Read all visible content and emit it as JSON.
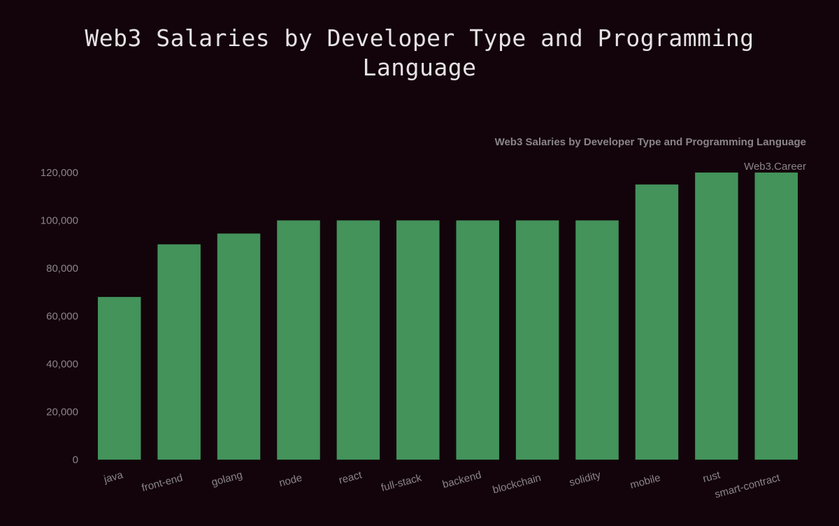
{
  "page": {
    "title_line1": "Web3 Salaries by Developer Type and Programming",
    "title_line2": "Language"
  },
  "colors": {
    "background": "#13040b",
    "bar": "#43935b",
    "text": "#8a8588",
    "title": "#e6e2e4"
  },
  "chart_data": {
    "type": "bar",
    "title": "Web3 Salaries by Developer Type and Programming Language",
    "watermark": "Web3.Career",
    "xlabel": "",
    "ylabel": "",
    "ylim": [
      0,
      120000
    ],
    "yticks": [
      0,
      20000,
      40000,
      60000,
      80000,
      100000,
      120000
    ],
    "ytick_labels": [
      "0",
      "20,000",
      "40,000",
      "60,000",
      "80,000",
      "100,000",
      "120,000"
    ],
    "categories": [
      "java",
      "front-end",
      "golang",
      "node",
      "react",
      "full-stack",
      "backend",
      "blockchain",
      "solidity",
      "mobile",
      "rust",
      "smart-contract"
    ],
    "values": [
      68000,
      90000,
      94500,
      100000,
      100000,
      100000,
      100000,
      100000,
      100000,
      115000,
      120000,
      120000
    ]
  }
}
